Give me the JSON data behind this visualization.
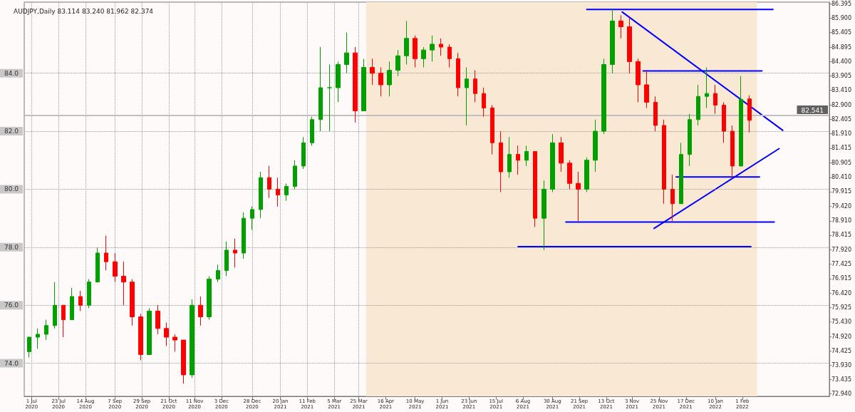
{
  "chart_data": {
    "type": "candlestick",
    "title": "AUDJPY,Daily 83.114 83.240 81.962 82.374",
    "x": [
      "2020-06-29",
      "2020-07-06",
      "2020-07-13",
      "2020-07-20",
      "2020-07-27",
      "2020-08-03",
      "2020-08-10",
      "2020-08-17",
      "2020-08-24",
      "2020-08-31",
      "2020-09-07",
      "2020-09-14",
      "2020-09-21",
      "2020-09-28",
      "2020-10-05",
      "2020-10-12",
      "2020-10-19",
      "2020-10-26",
      "2020-11-02",
      "2020-11-09",
      "2020-11-16",
      "2020-11-23",
      "2020-11-30",
      "2020-12-07",
      "2020-12-14",
      "2020-12-21",
      "2020-12-28",
      "2021-01-04",
      "2021-01-11",
      "2021-01-18",
      "2021-01-25",
      "2021-02-01",
      "2021-02-08",
      "2021-02-15",
      "2021-02-22",
      "2021-03-01",
      "2021-03-08",
      "2021-03-15",
      "2021-03-22",
      "2021-03-29",
      "2021-04-05",
      "2021-04-12",
      "2021-04-19",
      "2021-04-26",
      "2021-05-03",
      "2021-05-10",
      "2021-05-17",
      "2021-05-24",
      "2021-05-31",
      "2021-06-07",
      "2021-06-14",
      "2021-06-21",
      "2021-06-28",
      "2021-07-05",
      "2021-07-12",
      "2021-07-19",
      "2021-07-26",
      "2021-08-02",
      "2021-08-09",
      "2021-08-16",
      "2021-08-23",
      "2021-08-30",
      "2021-09-06",
      "2021-09-13",
      "2021-09-20",
      "2021-09-27",
      "2021-10-04",
      "2021-10-11",
      "2021-10-18",
      "2021-10-25",
      "2021-11-01",
      "2021-11-08",
      "2021-11-15",
      "2021-11-22",
      "2021-11-29",
      "2021-12-06",
      "2021-12-13",
      "2021-12-20",
      "2021-12-27",
      "2022-01-03",
      "2022-01-10",
      "2022-01-17",
      "2022-01-24",
      "2022-01-31",
      "2022-02-07"
    ],
    "ohlc": [
      [
        74.4,
        74.9,
        74.2,
        74.9
      ],
      [
        74.9,
        75.2,
        74.5,
        75.0
      ],
      [
        75.0,
        75.5,
        74.8,
        75.3
      ],
      [
        75.3,
        76.8,
        75.2,
        76.0
      ],
      [
        76.0,
        76.0,
        74.9,
        75.5
      ],
      [
        75.5,
        76.6,
        75.5,
        76.3
      ],
      [
        76.3,
        76.5,
        75.8,
        76.0
      ],
      [
        76.0,
        76.9,
        75.9,
        76.8
      ],
      [
        76.8,
        78.0,
        76.8,
        77.8
      ],
      [
        77.8,
        78.4,
        77.2,
        77.5
      ],
      [
        77.5,
        77.8,
        76.8,
        77.0
      ],
      [
        77.0,
        77.5,
        76.0,
        76.8
      ],
      [
        76.8,
        76.9,
        75.3,
        75.6
      ],
      [
        75.6,
        75.7,
        74.1,
        74.3
      ],
      [
        74.3,
        75.9,
        74.3,
        75.8
      ],
      [
        75.8,
        76.0,
        75.0,
        75.2
      ],
      [
        75.2,
        75.4,
        74.6,
        74.9
      ],
      [
        74.9,
        75.0,
        74.4,
        74.8
      ],
      [
        74.8,
        74.8,
        73.3,
        73.6
      ],
      [
        73.6,
        76.2,
        73.5,
        76.0
      ],
      [
        76.0,
        76.3,
        75.3,
        75.6
      ],
      [
        75.6,
        77.0,
        75.5,
        76.9
      ],
      [
        76.9,
        77.4,
        76.8,
        77.2
      ],
      [
        77.2,
        78.2,
        77.0,
        77.9
      ],
      [
        77.9,
        78.3,
        77.3,
        77.8
      ],
      [
        77.8,
        79.2,
        77.6,
        79.0
      ],
      [
        79.0,
        79.4,
        78.6,
        79.3
      ],
      [
        79.3,
        80.6,
        79.0,
        80.4
      ],
      [
        80.4,
        80.8,
        79.7,
        80.0
      ],
      [
        80.0,
        80.4,
        79.4,
        79.8
      ],
      [
        79.8,
        80.2,
        79.6,
        80.1
      ],
      [
        80.1,
        81.0,
        80.0,
        80.8
      ],
      [
        80.8,
        81.8,
        80.7,
        81.6
      ],
      [
        81.6,
        82.5,
        81.5,
        82.4
      ],
      [
        82.4,
        84.9,
        82.0,
        83.5
      ],
      [
        83.5,
        84.3,
        82.0,
        83.5
      ],
      [
        83.5,
        84.4,
        83.0,
        84.3
      ],
      [
        84.3,
        85.4,
        84.0,
        84.7
      ],
      [
        84.7,
        84.9,
        82.3,
        82.7
      ],
      [
        82.7,
        84.5,
        82.7,
        84.2
      ],
      [
        84.2,
        84.5,
        83.6,
        84.0
      ],
      [
        84.0,
        84.2,
        83.2,
        83.6
      ],
      [
        83.6,
        84.4,
        83.2,
        84.1
      ],
      [
        84.1,
        84.8,
        83.9,
        84.6
      ],
      [
        84.6,
        85.8,
        84.3,
        85.2
      ],
      [
        85.2,
        85.3,
        84.2,
        84.5
      ],
      [
        84.5,
        84.9,
        84.2,
        84.8
      ],
      [
        84.8,
        85.3,
        84.4,
        85.0
      ],
      [
        85.0,
        85.2,
        84.6,
        84.9
      ],
      [
        84.9,
        85.0,
        84.2,
        84.5
      ],
      [
        84.5,
        84.7,
        83.2,
        83.5
      ],
      [
        83.5,
        84.2,
        82.2,
        83.8
      ],
      [
        83.8,
        84.1,
        83.0,
        83.3
      ],
      [
        83.3,
        83.5,
        82.5,
        82.8
      ],
      [
        82.8,
        82.9,
        81.2,
        81.6
      ],
      [
        81.6,
        82.0,
        79.9,
        80.6
      ],
      [
        80.6,
        81.8,
        80.4,
        81.2
      ],
      [
        81.2,
        81.5,
        80.5,
        81.0
      ],
      [
        81.0,
        81.5,
        80.8,
        81.3
      ],
      [
        81.3,
        81.3,
        78.7,
        79.0
      ],
      [
        79.0,
        80.3,
        77.9,
        80.0
      ],
      [
        80.0,
        81.9,
        79.9,
        81.6
      ],
      [
        81.6,
        81.8,
        80.6,
        80.9
      ],
      [
        80.9,
        81.0,
        80.0,
        80.2
      ],
      [
        80.2,
        80.6,
        78.9,
        80.0
      ],
      [
        80.0,
        81.1,
        79.9,
        81.0
      ],
      [
        81.0,
        82.4,
        80.6,
        82.0
      ],
      [
        82.0,
        84.5,
        81.9,
        84.3
      ],
      [
        84.3,
        86.2,
        84.0,
        85.8
      ],
      [
        85.8,
        86.0,
        85.2,
        85.6
      ],
      [
        85.6,
        85.9,
        84.0,
        84.4
      ],
      [
        84.4,
        84.5,
        83.0,
        83.6
      ],
      [
        83.6,
        84.1,
        82.8,
        83.0
      ],
      [
        83.0,
        83.2,
        82.0,
        82.2
      ],
      [
        82.2,
        82.4,
        79.5,
        80.0
      ],
      [
        80.0,
        80.5,
        78.9,
        79.5
      ],
      [
        79.5,
        81.6,
        79.5,
        81.2
      ],
      [
        81.2,
        82.6,
        80.8,
        82.4
      ],
      [
        82.4,
        83.6,
        82.2,
        83.2
      ],
      [
        83.2,
        84.2,
        82.8,
        83.3
      ],
      [
        83.3,
        83.6,
        82.6,
        82.9
      ],
      [
        82.9,
        83.0,
        81.6,
        82.0
      ],
      [
        82.0,
        82.2,
        80.4,
        80.8
      ],
      [
        80.8,
        83.9,
        80.8,
        83.1
      ],
      [
        83.114,
        83.24,
        81.962,
        82.374
      ]
    ],
    "series": [
      {
        "type": "line",
        "color": "#0000ff",
        "x": [
          "2021-09-27",
          "2022-02-26"
        ],
        "values": [
          86.2,
          86.2
        ]
      },
      {
        "type": "line",
        "color": "#0000ff",
        "x": [
          "2021-10-26",
          "2022-03-06"
        ],
        "values": [
          86.11,
          82.03
        ]
      },
      {
        "type": "line",
        "color": "#0000ff",
        "x": [
          "2021-11-12",
          "2022-02-17"
        ],
        "values": [
          84.08,
          84.08
        ]
      },
      {
        "type": "line",
        "color": "#0000ff",
        "x": [
          "2021-12-09",
          "2022-02-15"
        ],
        "values": [
          80.42,
          80.42
        ]
      },
      {
        "type": "line",
        "color": "#0000ff",
        "x": [
          "2021-11-21",
          "2022-03-03"
        ],
        "values": [
          78.65,
          81.4
        ]
      },
      {
        "type": "line",
        "color": "#0000ff",
        "x": [
          "2021-09-10",
          "2022-02-27"
        ],
        "values": [
          78.87,
          78.87
        ]
      },
      {
        "type": "line",
        "color": "#0000ff",
        "x": [
          "2021-08-02",
          "2022-02-08"
        ],
        "values": [
          78.02,
          78.02
        ]
      }
    ],
    "xlim": [
      "2020-06-25",
      "2022-04-13"
    ],
    "xticks": [
      {
        "value": "2020-07-01",
        "label": "1 Jul 2020"
      },
      {
        "value": "2020-07-23",
        "label": "23 Jul 2020"
      },
      {
        "value": "2020-08-14",
        "label": "14 Aug 2020"
      },
      {
        "value": "2020-09-07",
        "label": "7 Sep 2020"
      },
      {
        "value": "2020-09-29",
        "label": "29 Sep 2020"
      },
      {
        "value": "2020-10-21",
        "label": "21 Oct 2020"
      },
      {
        "value": "2020-11-11",
        "label": "11 Nov 2020"
      },
      {
        "value": "2020-12-03",
        "label": "3 Dec 2020"
      },
      {
        "value": "2020-12-28",
        "label": "28 Dec 2020"
      },
      {
        "value": "2021-01-20",
        "label": "20 Jan 2021"
      },
      {
        "value": "2021-02-11",
        "label": "11 Feb 2021"
      },
      {
        "value": "2021-03-05",
        "label": "5 Mar 2021"
      },
      {
        "value": "2021-03-25",
        "label": "25 Mar 2021"
      },
      {
        "value": "2021-04-16",
        "label": "16 Apr 2021"
      },
      {
        "value": "2021-05-10",
        "label": "10 May 2021"
      },
      {
        "value": "2021-06-01",
        "label": "1 Jun 2021"
      },
      {
        "value": "2021-06-23",
        "label": "23 Jun 2021"
      },
      {
        "value": "2021-07-15",
        "label": "15 Jul 2021"
      },
      {
        "value": "2021-08-06",
        "label": "6 Aug 2021"
      },
      {
        "value": "2021-08-30",
        "label": "30 Aug 2021"
      },
      {
        "value": "2021-09-21",
        "label": "21 Sep 2021"
      },
      {
        "value": "2021-10-13",
        "label": "13 Oct 2021"
      },
      {
        "value": "2021-11-03",
        "label": "3 Nov 2021"
      },
      {
        "value": "2021-11-25",
        "label": "25 Nov 2021"
      },
      {
        "value": "2021-12-17",
        "label": "17 Dec 2021"
      },
      {
        "value": "2022-01-10",
        "label": "10 Jan 2022"
      },
      {
        "value": "2022-02-01",
        "label": "1 Feb 2022"
      }
    ],
    "ylim": [
      72.86,
      86.45
    ],
    "yticks": [
      86.395,
      {
        "value": 85.9,
        "label": "85.900"
      },
      85.405,
      84.895,
      {
        "value": 84.4,
        "label": "84.400"
      },
      83.905,
      {
        "value": 83.41,
        "label": "83.410"
      },
      {
        "value": 82.9,
        "label": "82.900"
      },
      82.405,
      {
        "value": 81.91,
        "label": "81.910"
      },
      81.415,
      80.905,
      {
        "value": 80.41,
        "label": "80.410"
      },
      79.915,
      {
        "value": 79.42,
        "label": "79.420"
      },
      {
        "value": 78.91,
        "label": "78.910"
      },
      78.415,
      {
        "value": 77.92,
        "label": "77.920"
      },
      77.425,
      76.915,
      {
        "value": 76.42,
        "label": "76.420"
      },
      75.925,
      {
        "value": 75.43,
        "label": "75.430"
      },
      {
        "value": 74.92,
        "label": "74.920"
      },
      74.425,
      {
        "value": 73.93,
        "label": "73.930"
      },
      73.435,
      {
        "value": 72.94,
        "label": "72.940"
      }
    ],
    "grid": "x",
    "bands": [
      {
        "axis": "x",
        "from": "2021-03-31",
        "to": "2022-02-13",
        "color": "#f8e8d4"
      }
    ],
    "ref_lines": [
      {
        "axis": "y",
        "value": 84,
        "label": "84.0",
        "color": "#999999",
        "line_style": "dotted"
      },
      {
        "axis": "y",
        "value": 82,
        "label": "82.0",
        "color": "#999999",
        "line_style": "dotted"
      },
      {
        "axis": "y",
        "value": 80,
        "label": "80.0",
        "color": "#999999",
        "line_style": "dotted"
      },
      {
        "axis": "y",
        "value": 78,
        "label": "78.0",
        "color": "#999999",
        "line_style": "dotted"
      },
      {
        "axis": "y",
        "value": 76,
        "label": "76.0",
        "color": "#999999",
        "line_style": "dotted"
      },
      {
        "axis": "y",
        "value": 74,
        "label": "74.0",
        "color": "#999999",
        "line_style": "dotted"
      },
      {
        "axis": "y",
        "value": 82.541,
        "label": "82.541",
        "color": "#c0c0c0",
        "line_style": "solid"
      }
    ]
  }
}
